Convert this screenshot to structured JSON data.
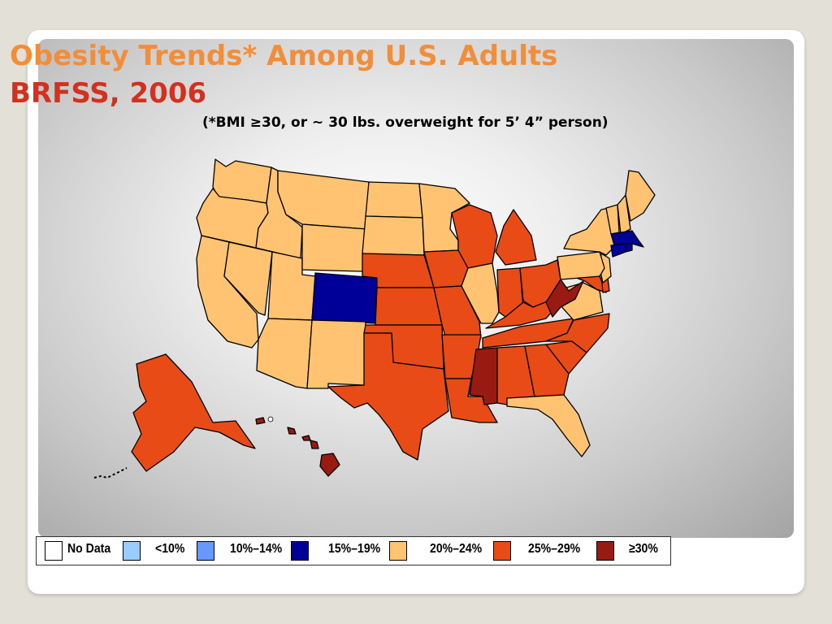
{
  "slide": {
    "title_line1": "Obesity Trends* Among U.S. Adults",
    "title_line2": "BRFSS, 2006",
    "subtitle": "(*BMI ≥30, or ~ 30 lbs. overweight for 5’ 4” person)"
  },
  "legend": [
    {
      "label": "No Data",
      "color": "#ffffff"
    },
    {
      "label": "<10%",
      "color": "#99ccff"
    },
    {
      "label": "10%–14%",
      "color": "#6699ff"
    },
    {
      "label": "15%–19%",
      "color": "#000099"
    },
    {
      "label": "20%–24%",
      "color": "#ffc372"
    },
    {
      "label": "25%–29%",
      "color": "#e84b16"
    },
    {
      "label": "≥30%",
      "color": "#991a11"
    }
  ],
  "map_data": {
    "prevalence_by_state": {
      "Washington": "20%–24%",
      "Oregon": "20%–24%",
      "California": "20%–24%",
      "Idaho": "20%–24%",
      "Nevada": "20%–24%",
      "Utah": "20%–24%",
      "Arizona": "20%–24%",
      "Montana": "20%–24%",
      "Wyoming": "20%–24%",
      "Colorado": "15%–19%",
      "New Mexico": "20%–24%",
      "North Dakota": "20%–24%",
      "South Dakota": "20%–24%",
      "Nebraska": "25%–29%",
      "Kansas": "25%–29%",
      "Oklahoma": "25%–29%",
      "Texas": "25%–29%",
      "Minnesota": "20%–24%",
      "Iowa": "25%–29%",
      "Missouri": "25%–29%",
      "Arkansas": "25%–29%",
      "Louisiana": "25%–29%",
      "Wisconsin": "25%–29%",
      "Illinois": "20%–24%",
      "Michigan": "25%–29%",
      "Indiana": "25%–29%",
      "Ohio": "25%–29%",
      "Kentucky": "25%–29%",
      "Tennessee": "25%–29%",
      "Mississippi": "≥30%",
      "Alabama": "25%–29%",
      "Georgia": "25%–29%",
      "Florida": "20%–24%",
      "South Carolina": "25%–29%",
      "North Carolina": "25%–29%",
      "Virginia": "20%–24%",
      "West Virginia": "≥30%",
      "Maryland": "25%–29%",
      "Delaware": "25%–29%",
      "New Jersey": "20%–24%",
      "Pennsylvania": "20%–24%",
      "New York": "20%–24%",
      "Vermont": "20%–24%",
      "New Hampshire": "20%–24%",
      "Maine": "20%–24%",
      "Massachusetts": "15%–19%",
      "Connecticut": "15%–19%",
      "Rhode Island": "15%–19%",
      "Alaska": "25%–29%",
      "Hawaii": "≥30%"
    }
  }
}
